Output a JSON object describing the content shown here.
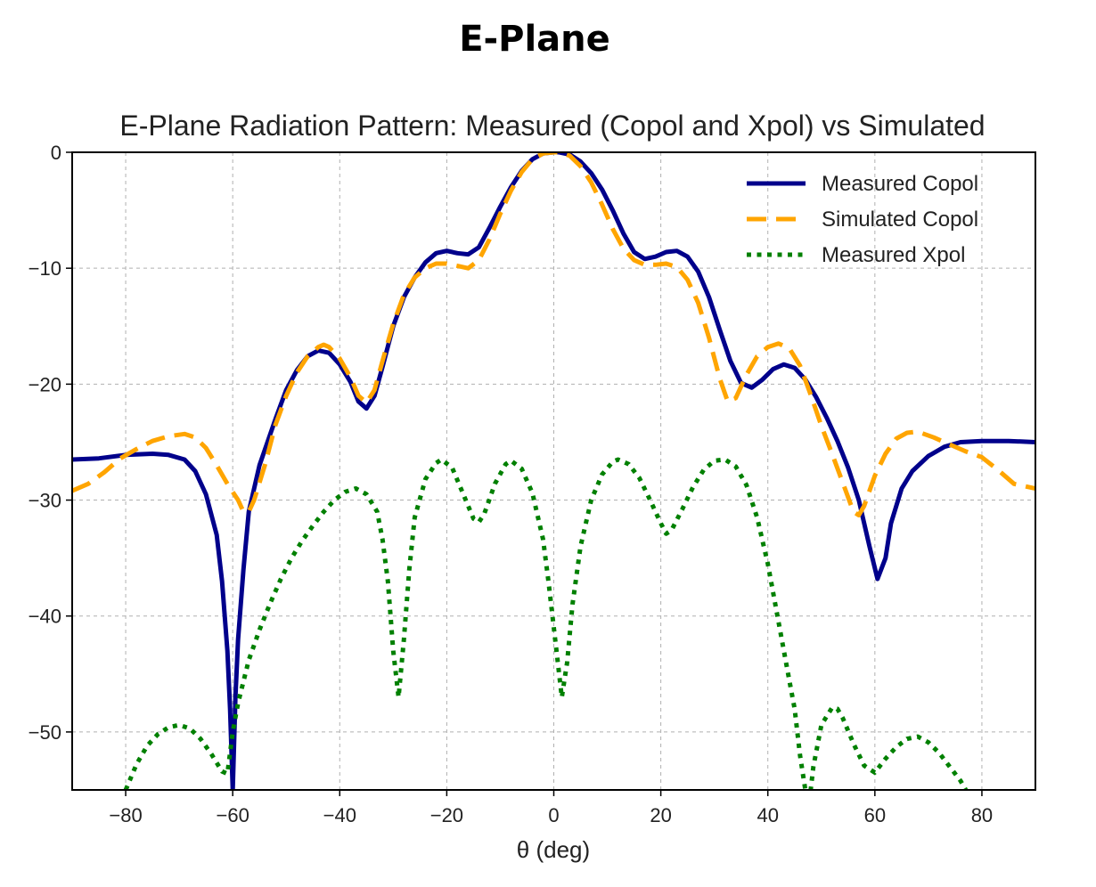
{
  "heading": "E-Plane",
  "chart_data": {
    "type": "line",
    "title": "E-Plane Radiation Pattern: Measured (Copol and Xpol) vs Simulated",
    "xlabel": "θ (deg)",
    "ylabel": "",
    "xlim": [
      -90,
      90
    ],
    "ylim": [
      -55,
      0
    ],
    "xticks": [
      -80,
      -60,
      -40,
      -20,
      0,
      20,
      40,
      60,
      80
    ],
    "yticks": [
      0,
      -10,
      -20,
      -30,
      -40,
      -50
    ],
    "xtick_labels": [
      "−80",
      "−60",
      "−40",
      "−20",
      "0",
      "20",
      "40",
      "60",
      "80"
    ],
    "ytick_labels": [
      "0",
      "−10",
      "−20",
      "−30",
      "−40",
      "−50"
    ],
    "grid": true,
    "legend_position": "top-right",
    "series": [
      {
        "name": "Measured Copol",
        "color": "#00008b",
        "style": "solid",
        "points": [
          [
            -90,
            -26.5
          ],
          [
            -85,
            -26.4
          ],
          [
            -80,
            -26.1
          ],
          [
            -75,
            -26.0
          ],
          [
            -72,
            -26.1
          ],
          [
            -69,
            -26.5
          ],
          [
            -67,
            -27.5
          ],
          [
            -65,
            -29.5
          ],
          [
            -63,
            -33
          ],
          [
            -62,
            -37
          ],
          [
            -61,
            -43
          ],
          [
            -60.5,
            -48
          ],
          [
            -60,
            -55
          ],
          [
            -59.5,
            -47
          ],
          [
            -59,
            -42
          ],
          [
            -58,
            -36
          ],
          [
            -57,
            -31
          ],
          [
            -55,
            -27
          ],
          [
            -52,
            -23
          ],
          [
            -50,
            -20.5
          ],
          [
            -48,
            -18.8
          ],
          [
            -46,
            -17.6
          ],
          [
            -44,
            -17.1
          ],
          [
            -42,
            -17.3
          ],
          [
            -40,
            -18.3
          ],
          [
            -38,
            -19.8
          ],
          [
            -36.5,
            -21.5
          ],
          [
            -35,
            -22.1
          ],
          [
            -33.5,
            -21
          ],
          [
            -32,
            -18.5
          ],
          [
            -30,
            -15
          ],
          [
            -28,
            -12.5
          ],
          [
            -26,
            -10.8
          ],
          [
            -24,
            -9.5
          ],
          [
            -22,
            -8.7
          ],
          [
            -20,
            -8.5
          ],
          [
            -18,
            -8.7
          ],
          [
            -16,
            -8.8
          ],
          [
            -14,
            -8.2
          ],
          [
            -12,
            -6.5
          ],
          [
            -10,
            -4.7
          ],
          [
            -8,
            -3.0
          ],
          [
            -6,
            -1.6
          ],
          [
            -4,
            -0.6
          ],
          [
            -2,
            -0.1
          ],
          [
            0,
            0
          ],
          [
            1,
            0
          ],
          [
            3,
            -0.2
          ],
          [
            5,
            -0.8
          ],
          [
            7,
            -1.8
          ],
          [
            9,
            -3.2
          ],
          [
            11,
            -5.0
          ],
          [
            13,
            -7.0
          ],
          [
            15,
            -8.6
          ],
          [
            17,
            -9.2
          ],
          [
            19,
            -9.0
          ],
          [
            21,
            -8.6
          ],
          [
            23,
            -8.5
          ],
          [
            25,
            -9.0
          ],
          [
            27,
            -10.3
          ],
          [
            29,
            -12.5
          ],
          [
            31,
            -15.3
          ],
          [
            33,
            -18.0
          ],
          [
            35,
            -19.9
          ],
          [
            37,
            -20.3
          ],
          [
            39,
            -19.6
          ],
          [
            41,
            -18.7
          ],
          [
            43,
            -18.3
          ],
          [
            45,
            -18.6
          ],
          [
            47,
            -19.6
          ],
          [
            49,
            -21.1
          ],
          [
            51,
            -22.9
          ],
          [
            53,
            -24.9
          ],
          [
            55,
            -27.2
          ],
          [
            57,
            -30
          ],
          [
            59,
            -34
          ],
          [
            60.5,
            -36.8
          ],
          [
            62,
            -35
          ],
          [
            63,
            -32
          ],
          [
            65,
            -29
          ],
          [
            67,
            -27.5
          ],
          [
            70,
            -26.2
          ],
          [
            73,
            -25.4
          ],
          [
            76,
            -25.0
          ],
          [
            80,
            -24.9
          ],
          [
            85,
            -24.9
          ],
          [
            90,
            -25.0
          ]
        ]
      },
      {
        "name": "Simulated Copol",
        "color": "#ffa500",
        "style": "dashed",
        "points": [
          [
            -90,
            -29.2
          ],
          [
            -87,
            -28.6
          ],
          [
            -84,
            -27.6
          ],
          [
            -81,
            -26.4
          ],
          [
            -78,
            -25.6
          ],
          [
            -75,
            -24.9
          ],
          [
            -72,
            -24.5
          ],
          [
            -69,
            -24.3
          ],
          [
            -67,
            -24.6
          ],
          [
            -65,
            -25.5
          ],
          [
            -63,
            -27.0
          ],
          [
            -61,
            -28.6
          ],
          [
            -59,
            -30
          ],
          [
            -58,
            -31
          ],
          [
            -57,
            -31
          ],
          [
            -56,
            -30
          ],
          [
            -54,
            -27
          ],
          [
            -52,
            -23.5
          ],
          [
            -50,
            -21
          ],
          [
            -48,
            -19
          ],
          [
            -46,
            -17.6
          ],
          [
            -44,
            -16.8
          ],
          [
            -43,
            -16.6
          ],
          [
            -42,
            -16.8
          ],
          [
            -40,
            -17.8
          ],
          [
            -38,
            -19.4
          ],
          [
            -36.5,
            -21
          ],
          [
            -35,
            -21.6
          ],
          [
            -33.5,
            -20.5
          ],
          [
            -32,
            -18
          ],
          [
            -30,
            -14.8
          ],
          [
            -28,
            -12.3
          ],
          [
            -26,
            -10.8
          ],
          [
            -24,
            -10
          ],
          [
            -22,
            -9.6
          ],
          [
            -20,
            -9.6
          ],
          [
            -18,
            -9.8
          ],
          [
            -16,
            -10
          ],
          [
            -14,
            -9.3
          ],
          [
            -12,
            -7.5
          ],
          [
            -10,
            -5.3
          ],
          [
            -8,
            -3.3
          ],
          [
            -6,
            -1.7
          ],
          [
            -4,
            -0.6
          ],
          [
            -2,
            -0.1
          ],
          [
            0,
            0
          ],
          [
            1,
            0
          ],
          [
            3,
            -0.3
          ],
          [
            5,
            -1.2
          ],
          [
            7,
            -2.6
          ],
          [
            9,
            -4.5
          ],
          [
            11,
            -6.6
          ],
          [
            13,
            -8.3
          ],
          [
            15,
            -9.3
          ],
          [
            17,
            -9.7
          ],
          [
            19,
            -9.7
          ],
          [
            21,
            -9.6
          ],
          [
            23,
            -9.9
          ],
          [
            25,
            -11
          ],
          [
            27,
            -13
          ],
          [
            29,
            -16
          ],
          [
            31,
            -19.5
          ],
          [
            32.5,
            -21.5
          ],
          [
            34,
            -21.2
          ],
          [
            36,
            -19.2
          ],
          [
            38,
            -17.6
          ],
          [
            40,
            -16.8
          ],
          [
            42,
            -16.5
          ],
          [
            44,
            -16.9
          ],
          [
            46,
            -18.4
          ],
          [
            48,
            -20.9
          ],
          [
            50,
            -23.6
          ],
          [
            52,
            -26
          ],
          [
            54,
            -28.5
          ],
          [
            56,
            -31
          ],
          [
            57,
            -31.3
          ],
          [
            58,
            -30.5
          ],
          [
            60,
            -27.9
          ],
          [
            62,
            -26
          ],
          [
            64,
            -24.7
          ],
          [
            66,
            -24.2
          ],
          [
            68,
            -24.1
          ],
          [
            71,
            -24.6
          ],
          [
            74,
            -25.2
          ],
          [
            77,
            -25.8
          ],
          [
            80,
            -26.3
          ],
          [
            83,
            -27.4
          ],
          [
            86,
            -28.6
          ],
          [
            90,
            -29
          ]
        ]
      },
      {
        "name": "Measured Xpol",
        "color": "#008000",
        "style": "dotted",
        "points": [
          [
            -80,
            -55
          ],
          [
            -78,
            -52.8
          ],
          [
            -76,
            -51.2
          ],
          [
            -74,
            -50.2
          ],
          [
            -72,
            -49.6
          ],
          [
            -70,
            -49.4
          ],
          [
            -68,
            -49.7
          ],
          [
            -66,
            -50.6
          ],
          [
            -64,
            -51.9
          ],
          [
            -62,
            -53.4
          ],
          [
            -61,
            -53.6
          ],
          [
            -60,
            -50
          ],
          [
            -59,
            -47.5
          ],
          [
            -57,
            -43.8
          ],
          [
            -55,
            -41.2
          ],
          [
            -53,
            -38.9
          ],
          [
            -51,
            -36.8
          ],
          [
            -49,
            -35
          ],
          [
            -47,
            -33.5
          ],
          [
            -45,
            -32.2
          ],
          [
            -43,
            -31
          ],
          [
            -41,
            -30
          ],
          [
            -39,
            -29.3
          ],
          [
            -37,
            -29
          ],
          [
            -35,
            -29.5
          ],
          [
            -33,
            -31
          ],
          [
            -32,
            -33.4
          ],
          [
            -31,
            -37
          ],
          [
            -30,
            -43
          ],
          [
            -29,
            -47
          ],
          [
            -28,
            -42
          ],
          [
            -27,
            -36
          ],
          [
            -26,
            -31.5
          ],
          [
            -24,
            -28.2
          ],
          [
            -22,
            -26.8
          ],
          [
            -21,
            -26.5
          ],
          [
            -19,
            -27.2
          ],
          [
            -17,
            -29.4
          ],
          [
            -15,
            -31.6
          ],
          [
            -14,
            -31.9
          ],
          [
            -13,
            -31.2
          ],
          [
            -11,
            -28.6
          ],
          [
            -9,
            -26.9
          ],
          [
            -8,
            -26.6
          ],
          [
            -6,
            -27.3
          ],
          [
            -4,
            -29.4
          ],
          [
            -2,
            -33.4
          ],
          [
            -1,
            -37
          ],
          [
            0,
            -41
          ],
          [
            1,
            -45
          ],
          [
            1.5,
            -47
          ],
          [
            2.5,
            -44
          ],
          [
            3.5,
            -39
          ],
          [
            5,
            -34
          ],
          [
            7,
            -30
          ],
          [
            9,
            -27.8
          ],
          [
            11,
            -26.7
          ],
          [
            12,
            -26.5
          ],
          [
            14,
            -26.9
          ],
          [
            16,
            -28.1
          ],
          [
            18,
            -30
          ],
          [
            20,
            -32
          ],
          [
            21,
            -32.9
          ],
          [
            22,
            -32.6
          ],
          [
            24,
            -30.8
          ],
          [
            26,
            -28.9
          ],
          [
            28,
            -27.4
          ],
          [
            30,
            -26.6
          ],
          [
            32,
            -26.5
          ],
          [
            34,
            -27.1
          ],
          [
            36,
            -28.7
          ],
          [
            38,
            -31.5
          ],
          [
            40,
            -35.5
          ],
          [
            42,
            -40.5
          ],
          [
            44,
            -45.5
          ],
          [
            45,
            -48
          ],
          [
            46,
            -52
          ],
          [
            47,
            -55
          ],
          [
            48,
            -55
          ],
          [
            48.5,
            -53
          ],
          [
            50,
            -49.4
          ],
          [
            52,
            -47.9
          ],
          [
            53,
            -48
          ],
          [
            54,
            -48.8
          ],
          [
            56,
            -51
          ],
          [
            58,
            -52.9
          ],
          [
            60,
            -53.5
          ],
          [
            62,
            -52.3
          ],
          [
            64,
            -51.3
          ],
          [
            66,
            -50.6
          ],
          [
            68,
            -50.4
          ],
          [
            70,
            -50.9
          ],
          [
            72,
            -51.8
          ],
          [
            74,
            -53
          ],
          [
            76,
            -54.2
          ],
          [
            77,
            -55
          ]
        ]
      }
    ]
  }
}
